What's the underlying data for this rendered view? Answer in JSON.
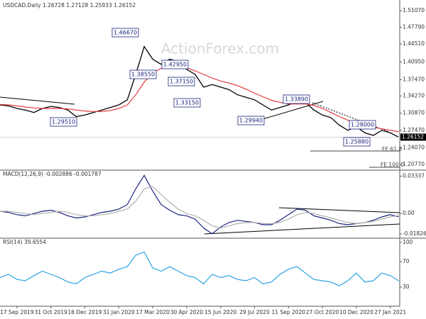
{
  "chart_data": [
    {
      "type": "line",
      "title": "USDCAD.Daily 1.26728 1.27128 1.25933 1.26152",
      "watermark": "ActionForex.com",
      "categories": [
        null,
        null,
        "17 Sep 2019",
        null,
        null,
        null,
        "31 Oct 2019",
        null,
        null,
        null,
        "16 Dec 2019",
        null,
        null,
        null,
        "31 Jan 2020",
        null,
        null,
        null,
        "17 Mar 2020",
        null,
        null,
        null,
        "30 Apr 2020",
        null,
        null,
        null,
        "15 Jun 2020",
        null,
        null,
        null,
        "29 Jul 2020",
        null,
        null,
        null,
        "11 Sep 2020",
        null,
        null,
        null,
        "27 Oct 2020",
        null,
        null,
        null,
        "10 Dec 2020",
        null,
        null,
        null,
        "27 Jan 2021",
        null
      ],
      "series": [
        {
          "color": "#000000",
          "values": [
            1.325,
            1.323,
            1.318,
            1.315,
            1.31,
            1.318,
            1.322,
            1.32,
            1.315,
            1.302,
            1.305,
            1.31,
            1.315,
            1.32,
            1.325,
            1.335,
            1.385,
            1.44,
            1.415,
            1.405,
            1.415,
            1.41,
            1.395,
            1.385,
            1.36,
            1.365,
            1.36,
            1.355,
            1.345,
            1.34,
            1.335,
            1.325,
            1.315,
            1.32,
            1.325,
            1.332,
            1.33,
            1.315,
            1.305,
            1.3,
            1.285,
            1.275,
            1.282,
            1.27,
            1.265,
            1.275,
            1.27,
            1.26152
          ]
        },
        {
          "color": "#e8393b",
          "values": [
            1.326,
            1.325,
            1.323,
            1.321,
            1.319,
            1.318,
            1.318,
            1.318,
            1.317,
            1.315,
            1.313,
            1.312,
            1.312,
            1.314,
            1.318,
            1.325,
            1.345,
            1.37,
            1.388,
            1.397,
            1.4,
            1.401,
            1.398,
            1.392,
            1.385,
            1.378,
            1.372,
            1.368,
            1.363,
            1.356,
            1.348,
            1.341,
            1.334,
            1.33,
            1.327,
            1.327,
            1.327,
            1.324,
            1.318,
            1.31,
            1.302,
            1.295,
            1.29,
            1.285,
            1.281,
            1.278,
            1.275,
            1.272
          ]
        }
      ],
      "annotations": [
        "1.46670",
        "1.38550",
        "1.42950",
        "1.37150",
        "1.33150",
        "1.29510",
        "1.29940",
        "1.33890",
        "1.28000",
        "1.25880",
        "FE 61.8",
        "FE 100.0"
      ],
      "ylim": [
        1.1965,
        1.5247
      ],
      "yticks": [
        {
          "value": 1.5107,
          "label": "1.51070"
        },
        {
          "value": 1.4779,
          "label": "1.47790"
        },
        {
          "value": 1.4451,
          "label": "1.44510"
        },
        {
          "value": 1.4095,
          "label": "1.40950"
        },
        {
          "value": 1.3747,
          "label": "1.37470"
        },
        {
          "value": 1.3427,
          "label": "1.34270"
        },
        {
          "value": 1.3087,
          "label": "1.30870"
        },
        {
          "value": 1.2747,
          "label": "1.27470"
        },
        {
          "value": 1.2407,
          "label": "1.24070"
        },
        {
          "value": 1.2077,
          "label": "1.20770"
        }
      ]
    },
    {
      "type": "line",
      "title": "MACD(12,26,9) -0.002886 -0.001787",
      "series": [
        {
          "color": "#1a237e",
          "values": [
            0.002,
            0.001,
            -0.001,
            -0.002,
            0.0,
            0.002,
            0.003,
            0.001,
            -0.002,
            -0.004,
            -0.003,
            -0.001,
            0.001,
            0.002,
            0.004,
            0.008,
            0.022,
            0.034,
            0.02,
            0.008,
            0.003,
            -0.001,
            -0.002,
            -0.005,
            -0.013,
            -0.018,
            -0.012,
            -0.008,
            -0.006,
            -0.007,
            -0.008,
            -0.01,
            -0.01,
            -0.006,
            -0.001,
            0.004,
            0.003,
            -0.002,
            -0.004,
            -0.006,
            -0.009,
            -0.01,
            -0.009,
            -0.008,
            -0.006,
            -0.003,
            -0.001,
            -0.002886
          ]
        },
        {
          "color": "#b0b0b0",
          "values": [
            0.002,
            0.002,
            0.001,
            0.0,
            -0.001,
            0.0,
            0.001,
            0.002,
            0.001,
            -0.001,
            -0.002,
            -0.002,
            -0.001,
            0.0,
            0.002,
            0.004,
            0.011,
            0.022,
            0.024,
            0.017,
            0.01,
            0.004,
            0.0,
            -0.002,
            -0.006,
            -0.011,
            -0.013,
            -0.011,
            -0.009,
            -0.008,
            -0.008,
            -0.009,
            -0.009,
            -0.008,
            -0.005,
            -0.001,
            0.001,
            0.0,
            -0.002,
            -0.004,
            -0.006,
            -0.008,
            -0.009,
            -0.008,
            -0.007,
            -0.005,
            -0.003,
            -0.001787
          ]
        }
      ],
      "ylim": [
        -0.022,
        0.0387
      ],
      "yticks": [
        0.03337,
        {
          "value": 0,
          "label": "0.00"
        },
        -0.018262
      ]
    },
    {
      "type": "line",
      "title": "RSI(14) 39.6554",
      "series": [
        {
          "color": "#29a3e0",
          "values": [
            45,
            50,
            42,
            40,
            48,
            55,
            50,
            45,
            38,
            35,
            45,
            50,
            55,
            52,
            58,
            62,
            80,
            85,
            60,
            55,
            62,
            55,
            48,
            45,
            35,
            50,
            45,
            48,
            42,
            40,
            45,
            35,
            38,
            50,
            58,
            62,
            52,
            42,
            40,
            38,
            32,
            40,
            52,
            38,
            40,
            52,
            48,
            39.6554
          ]
        }
      ],
      "ylim": [
        0,
        106.7
      ],
      "yticks": [
        100,
        70,
        30
      ]
    }
  ]
}
